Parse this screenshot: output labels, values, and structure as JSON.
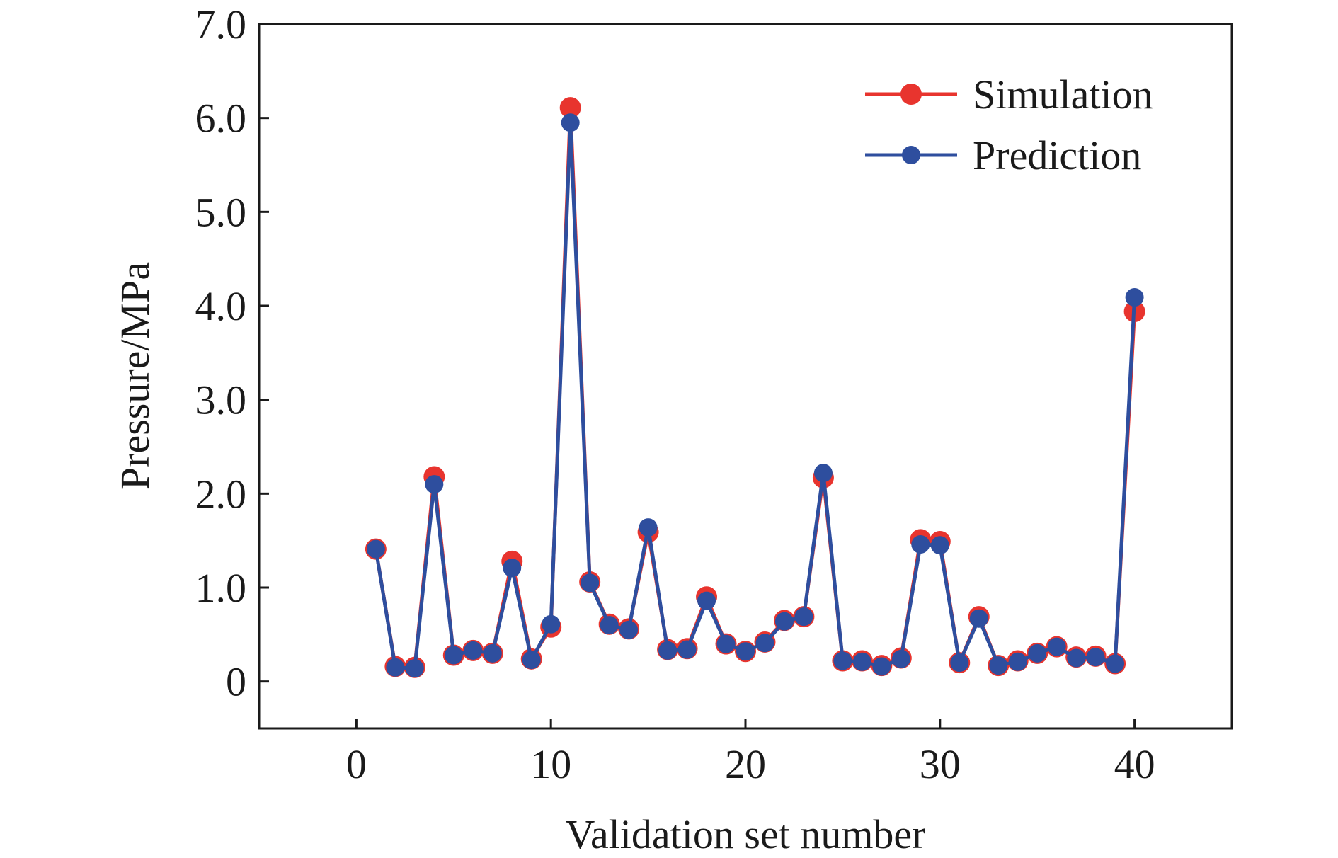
{
  "chart_data": {
    "type": "line",
    "xlabel": "Validation set number",
    "ylabel": "Pressure/MPa",
    "xlim": [
      -5,
      45
    ],
    "ylim": [
      -0.5,
      7.0
    ],
    "x_ticks": [
      0,
      10,
      20,
      30,
      40
    ],
    "x_tick_labels": [
      "0",
      "10",
      "20",
      "30",
      "40"
    ],
    "y_ticks": [
      0,
      1,
      2,
      3,
      4,
      5,
      6,
      7
    ],
    "y_tick_labels": [
      "0",
      "1.0",
      "2.0",
      "3.0",
      "4.0",
      "5.0",
      "6.0",
      "7.0"
    ],
    "grid": false,
    "legend_position": "top-right",
    "x": [
      1,
      2,
      3,
      4,
      5,
      6,
      7,
      8,
      9,
      10,
      11,
      12,
      13,
      14,
      15,
      16,
      17,
      18,
      19,
      20,
      21,
      22,
      23,
      24,
      25,
      26,
      27,
      28,
      29,
      30,
      31,
      32,
      33,
      34,
      35,
      36,
      37,
      38,
      39,
      40
    ],
    "series": [
      {
        "name": "Simulation",
        "color": "#e8342e",
        "values": [
          1.41,
          0.16,
          0.15,
          2.18,
          0.28,
          0.33,
          0.3,
          1.28,
          0.24,
          0.58,
          6.11,
          1.06,
          0.61,
          0.56,
          1.59,
          0.34,
          0.35,
          0.9,
          0.4,
          0.32,
          0.42,
          0.65,
          0.69,
          2.17,
          0.22,
          0.22,
          0.17,
          0.25,
          1.51,
          1.49,
          0.2,
          0.69,
          0.17,
          0.22,
          0.3,
          0.37,
          0.26,
          0.27,
          0.19,
          3.94
        ]
      },
      {
        "name": "Prediction",
        "color": "#2e4e9e",
        "values": [
          1.41,
          0.15,
          0.14,
          2.1,
          0.28,
          0.33,
          0.3,
          1.21,
          0.23,
          0.61,
          5.95,
          1.05,
          0.6,
          0.55,
          1.64,
          0.33,
          0.34,
          0.86,
          0.4,
          0.32,
          0.41,
          0.64,
          0.69,
          2.22,
          0.22,
          0.21,
          0.16,
          0.24,
          1.46,
          1.45,
          0.2,
          0.67,
          0.17,
          0.21,
          0.3,
          0.37,
          0.25,
          0.26,
          0.19,
          4.09
        ]
      }
    ]
  }
}
